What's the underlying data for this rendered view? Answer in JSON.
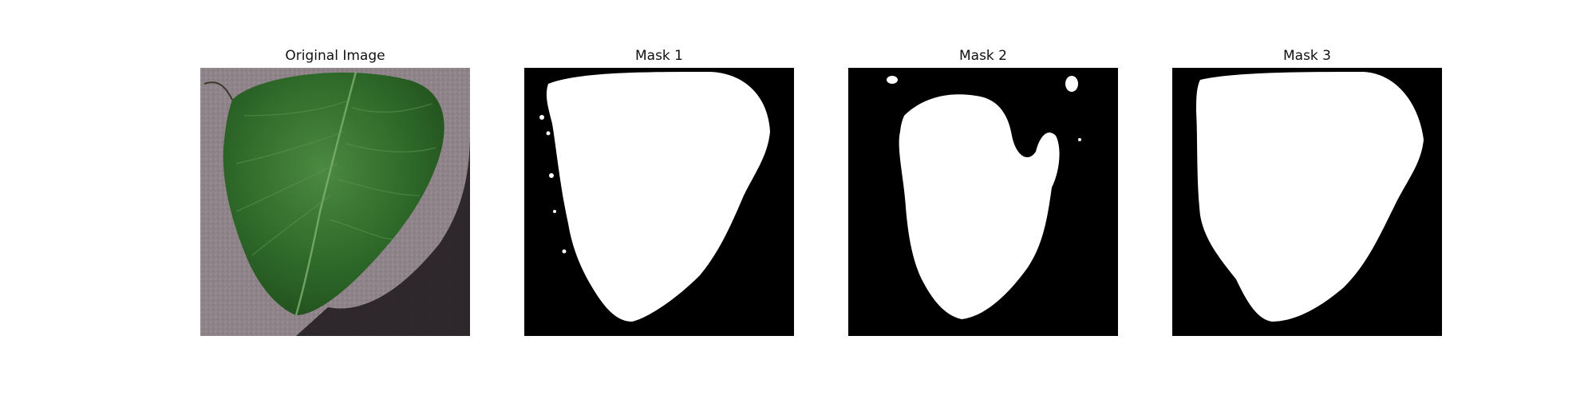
{
  "figure": {
    "panels": [
      {
        "title": "Original Image",
        "kind": "photo"
      },
      {
        "title": "Mask 1",
        "kind": "mask"
      },
      {
        "title": "Mask 2",
        "kind": "mask"
      },
      {
        "title": "Mask 3",
        "kind": "mask"
      }
    ]
  },
  "colors": {
    "mask_background": "#000000",
    "mask_foreground": "#ffffff",
    "photo_background": "#8e8388",
    "leaf_dark": "#1f4a1a",
    "leaf_mid": "#2f6a2a",
    "leaf_light": "#4b8a40",
    "shadow": "#231d21"
  }
}
